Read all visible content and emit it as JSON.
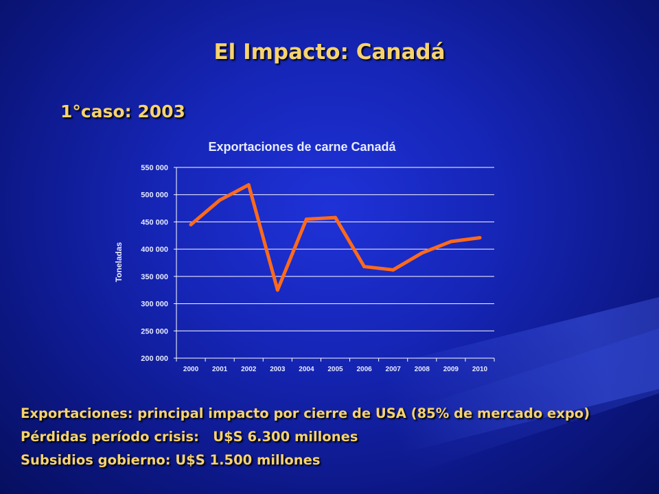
{
  "slide": {
    "title": "El Impacto: Canadá",
    "subtitle": "1°caso: 2003",
    "bullets": [
      "Exportaciones: principal impacto por cierre de USA (85% de mercado expo)",
      "Pérdidas período crisis:   U$S 6.300 millones",
      "Subsidios gobierno: U$S 1.500 millones"
    ],
    "colors": {
      "title_text": "#f6d36e",
      "background": "#1626b8",
      "line": "#ff6a1a"
    }
  },
  "chart_data": {
    "type": "line",
    "title": "Exportaciones de carne Canadá",
    "xlabel": "",
    "ylabel": "Toneladas",
    "categories": [
      "2000",
      "2001",
      "2002",
      "2003",
      "2004",
      "2005",
      "2006",
      "2007",
      "2008",
      "2009",
      "2010"
    ],
    "series": [
      {
        "values": [
          445000,
          490000,
          518000,
          325000,
          455000,
          458000,
          368000,
          362000,
          393000,
          414000,
          421000
        ]
      }
    ],
    "ylim": [
      200000,
      550000
    ],
    "yticks": [
      200000,
      250000,
      300000,
      350000,
      400000,
      450000,
      500000,
      550000
    ],
    "ytick_labels": [
      "200 000",
      "250 000",
      "300 000",
      "350 000",
      "400 000",
      "450 000",
      "500 000",
      "550 000"
    ],
    "grid": true,
    "legend": "none"
  }
}
